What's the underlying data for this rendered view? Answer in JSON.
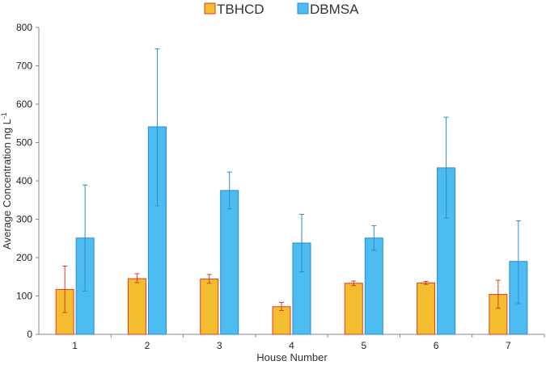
{
  "chart_data": {
    "type": "bar",
    "title": "",
    "xlabel": "House Number",
    "ylabel": "Average Concentration ng L",
    "ylabel_superscript": "-1",
    "categories": [
      "1",
      "2",
      "3",
      "4",
      "5",
      "6",
      "7"
    ],
    "ylim": [
      0,
      800
    ],
    "yticks": [
      "0",
      "100",
      "200",
      "300",
      "400",
      "500",
      "600",
      "700",
      "800"
    ],
    "grid": false,
    "legend_position": "top-center",
    "series": [
      {
        "name": "TBHCD",
        "values": [
          117,
          145,
          144,
          72,
          133,
          134,
          104
        ],
        "error_low": [
          57,
          135,
          133,
          62,
          127,
          130,
          68
        ],
        "error_high": [
          178,
          158,
          156,
          83,
          139,
          138,
          141
        ],
        "color": "#F2BE2F",
        "edge_color": "#E03A20"
      },
      {
        "name": "DBMSA",
        "values": [
          251,
          541,
          375,
          238,
          251,
          434,
          190
        ],
        "error_low": [
          113,
          335,
          327,
          163,
          219,
          303,
          80
        ],
        "error_high": [
          389,
          744,
          423,
          313,
          283,
          566,
          296
        ],
        "color": "#4DBCF0",
        "edge_color": "#2C8BD6"
      }
    ]
  }
}
